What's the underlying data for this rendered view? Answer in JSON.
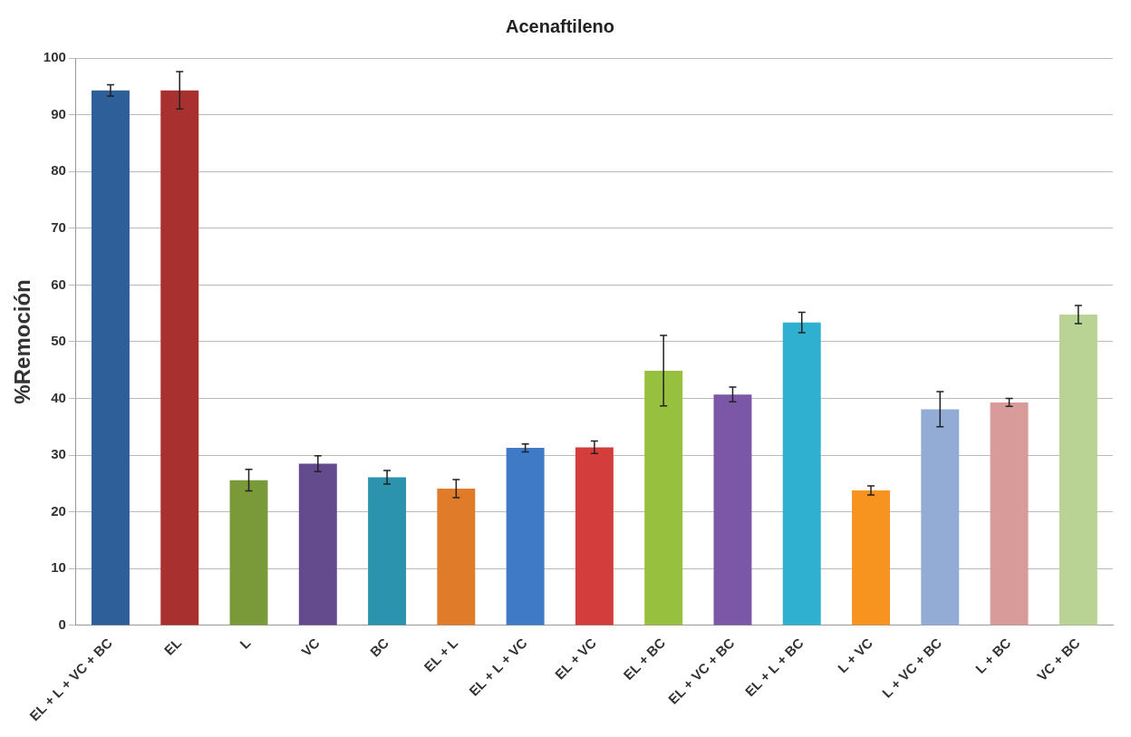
{
  "chart_data": {
    "type": "bar",
    "title": "Acenaftileno",
    "ylabel": "%Remoción",
    "categories": [
      "EL + L + VC + BC",
      "EL",
      "L",
      "VC",
      "BC",
      "EL + L",
      "EL + L + VC",
      "EL + VC",
      "EL + BC",
      "EL + VC + BC",
      "EL + L + BC",
      "L + VC",
      "L + VC + BC",
      "L + BC",
      "VC + BC"
    ],
    "values": [
      94.3,
      94.3,
      25.6,
      28.5,
      26.1,
      24.1,
      31.3,
      31.4,
      44.9,
      40.7,
      53.4,
      23.8,
      38.1,
      39.3,
      54.8
    ],
    "errors": [
      1.0,
      3.3,
      1.9,
      1.4,
      1.2,
      1.6,
      0.7,
      1.1,
      6.2,
      1.3,
      1.8,
      0.8,
      3.1,
      0.7,
      1.6
    ],
    "colors": [
      "#2f5f98",
      "#a8302f",
      "#7a9a3a",
      "#634b8e",
      "#2b93ad",
      "#e07b2a",
      "#3f7ac6",
      "#d33d3b",
      "#96c03e",
      "#7c57a8",
      "#2fb0d0",
      "#f7931f",
      "#93acd6",
      "#d99a9a",
      "#b9d394"
    ],
    "ylim": [
      0,
      100
    ],
    "yticks": [
      0,
      10,
      20,
      30,
      40,
      50,
      60,
      70,
      80,
      90,
      100
    ],
    "grid": "y"
  }
}
